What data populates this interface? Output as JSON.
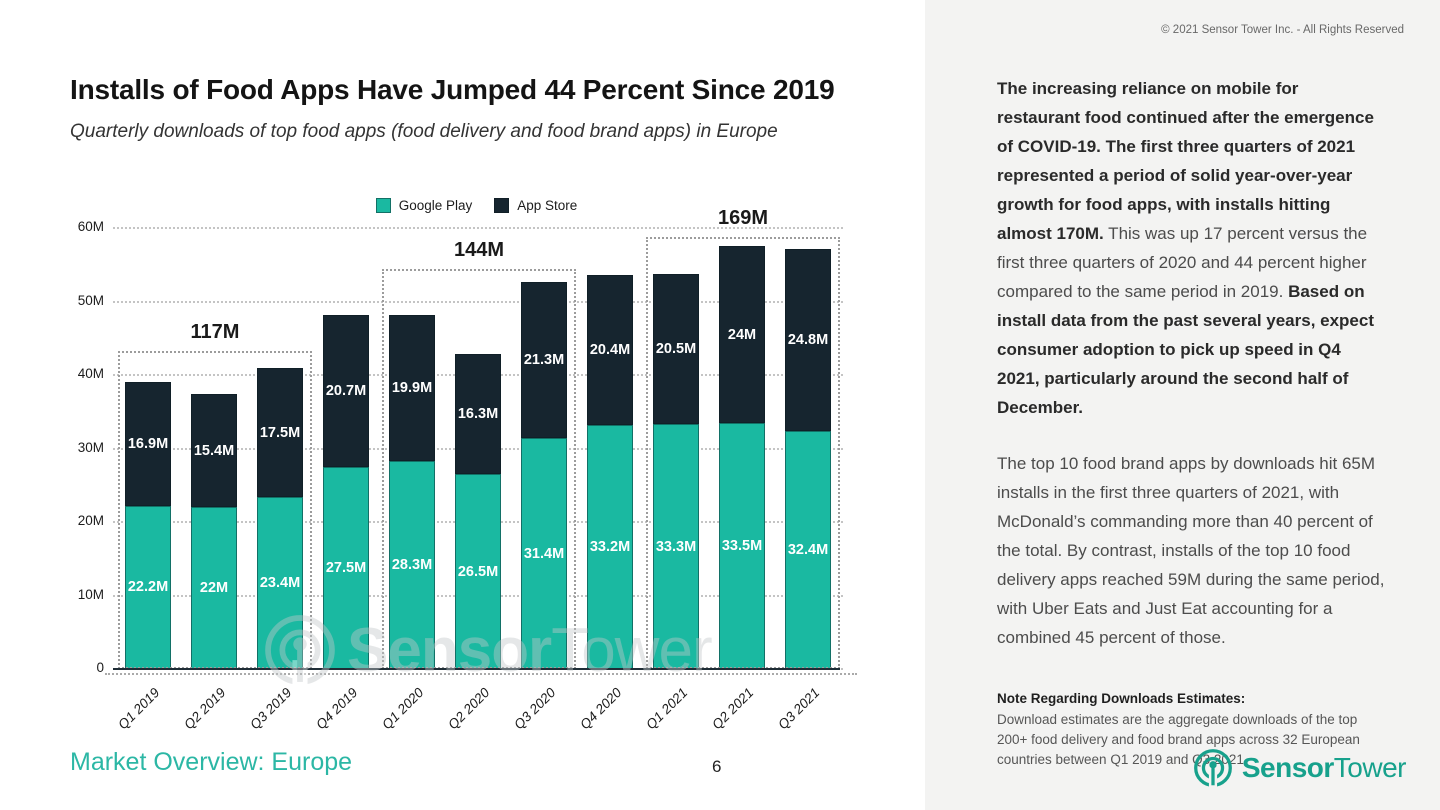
{
  "header": {
    "copyright": "© 2021 Sensor Tower Inc. - All Rights Reserved"
  },
  "chart_data": {
    "type": "bar",
    "stacked": true,
    "title": "Installs of Food Apps Have Jumped 44 Percent Since 2019",
    "subtitle": "Quarterly downloads of top food apps (food delivery and food brand apps) in Europe",
    "categories": [
      "Q1 2019",
      "Q2 2019",
      "Q3 2019",
      "Q4 2019",
      "Q1 2020",
      "Q2 2020",
      "Q3 2020",
      "Q4 2020",
      "Q1 2021",
      "Q2 2021",
      "Q3 2021"
    ],
    "series": [
      {
        "name": "Google Play",
        "color": "#1ab9a1",
        "values": [
          22.2,
          22,
          23.4,
          27.5,
          28.3,
          26.5,
          31.4,
          33.2,
          33.3,
          33.5,
          32.4
        ],
        "labels": [
          "22.2M",
          "22M",
          "23.4M",
          "27.5M",
          "28.3M",
          "26.5M",
          "31.4M",
          "33.2M",
          "33.3M",
          "33.5M",
          "32.4M"
        ]
      },
      {
        "name": "App Store",
        "color": "#16252f",
        "values": [
          16.9,
          15.4,
          17.5,
          20.7,
          19.9,
          16.3,
          21.3,
          20.4,
          20.5,
          24,
          24.8
        ],
        "labels": [
          "16.9M",
          "15.4M",
          "17.5M",
          "20.7M",
          "19.9M",
          "16.3M",
          "21.3M",
          "20.4M",
          "20.5M",
          "24M",
          "24.8M"
        ]
      }
    ],
    "ylim": [
      0,
      60
    ],
    "yticks": [
      {
        "value": 0,
        "label": "0"
      },
      {
        "value": 10,
        "label": "10M"
      },
      {
        "value": 20,
        "label": "20M"
      },
      {
        "value": 30,
        "label": "30M"
      },
      {
        "value": 40,
        "label": "40M"
      },
      {
        "value": 50,
        "label": "50M"
      },
      {
        "value": 60,
        "label": "60M"
      }
    ],
    "grid": "horizontal-dotted",
    "legend_position": "top-center",
    "annotations": [
      {
        "label": "117M",
        "start_index": 0,
        "end_index": 2,
        "box_top_value": 43.2
      },
      {
        "label": "144M",
        "start_index": 4,
        "end_index": 6,
        "box_top_value": 54.4
      },
      {
        "label": "169M",
        "start_index": 8,
        "end_index": 10,
        "box_top_value": 58.8
      }
    ]
  },
  "watermark": {
    "text_bold": "Sensor",
    "text_light": "Tower"
  },
  "footer": {
    "label": "Market Overview: Europe",
    "page_number": "6"
  },
  "sidebar": {
    "paragraph1": {
      "bold_intro": "The increasing reliance on mobile for restaurant food continued after the emergence of COVID-19. The first three quarters of 2021 represented a period of solid year-over-year growth for food apps, with installs hitting almost 170M.",
      "regular_mid": " This was up 17 percent versus the first three quarters of 2020 and 44 percent higher compared to the same period in 2019. ",
      "bold_end": "Based on install data from the past several years, expect consumer adoption to pick up speed in Q4 2021, particularly around the second half of December."
    },
    "paragraph2": "The top 10 food brand apps by downloads hit 65M installs in the first three quarters of 2021, with McDonald’s commanding more than 40 percent of the total. By contrast, installs of the top 10 food delivery apps reached 59M during the same period, with Uber Eats and Just Eat accounting for a combined 45 percent of those.",
    "note_title": "Note Regarding Downloads Estimates:",
    "note_body": "Download estimates are the aggregate downloads of the top 200+ food delivery and food brand apps across 32 European countries between Q1 2019 and Q3 2021.",
    "logo_bold": "Sensor",
    "logo_regular": "Tower"
  },
  "colors": {
    "google_play": "#1ab9a1",
    "app_store": "#16252f",
    "brand_teal": "#17a18c",
    "footer_teal": "#2cb7a5",
    "right_panel_bg": "#f3f3f2"
  }
}
